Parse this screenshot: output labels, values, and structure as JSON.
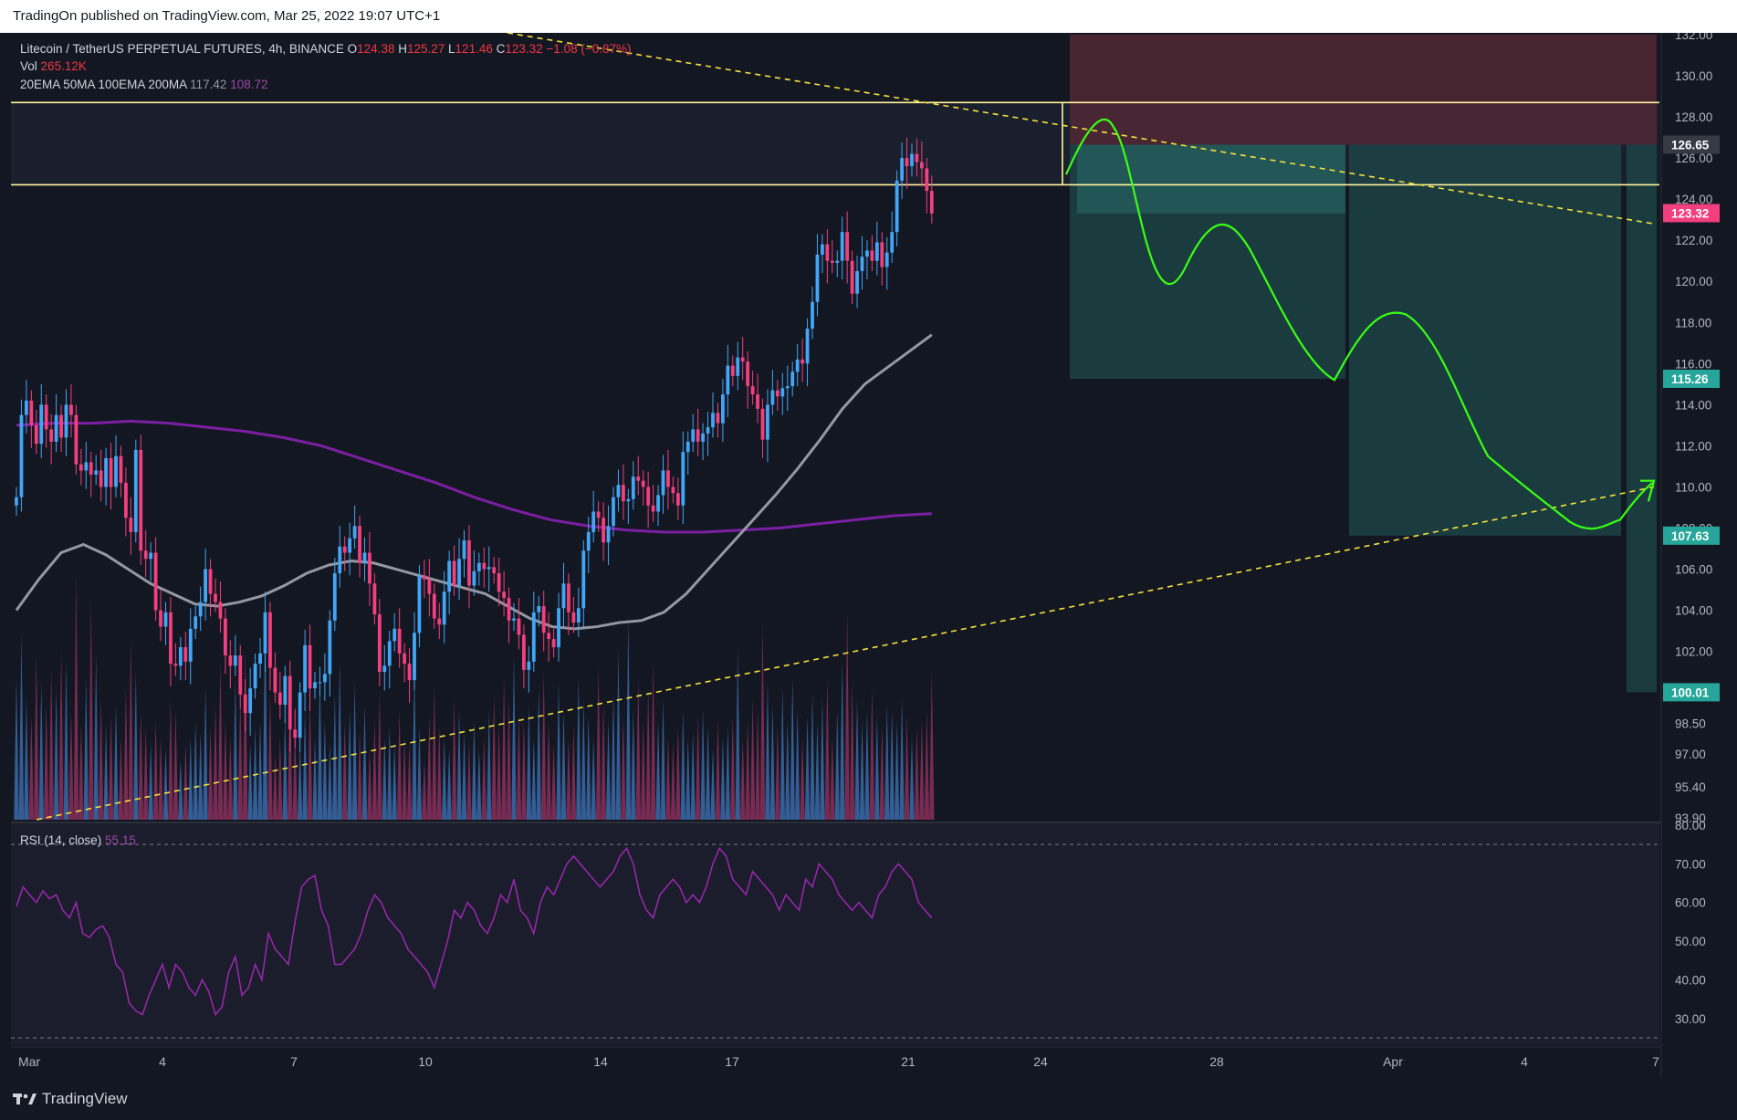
{
  "header": {
    "publisher_line": "TradingOn published on TradingView.com, Mar 25, 2022 19:07 UTC+1"
  },
  "footer": {
    "brand": "TradingView"
  },
  "legend": {
    "symbol": "Litecoin / TetherUS PERPETUAL FUTURES, 4h, BINANCE",
    "o_label": "O",
    "o": "124.38",
    "h_label": "H",
    "h": "125.27",
    "l_label": "L",
    "l": "121.46",
    "c_label": "C",
    "c": "123.32",
    "change": "−1.08 (−0.87%)",
    "vol_label": "Vol",
    "vol": "265.12K",
    "ma_label": "20EMA 50MA 100EMA 200MA",
    "ma1": "117.42",
    "ma2": "108.72",
    "rsi_label": "RSI (14, close)",
    "rsi": "55.15"
  },
  "colors": {
    "up": "#42a5f5",
    "down": "#f23f7e",
    "bg": "#131722",
    "ma100": "#9598a1",
    "ma200": "#7b1fa2",
    "projection": "#39ff14",
    "trend": "#f5e33c",
    "levels": "#fff59d",
    "rsi": "#9c27b0"
  },
  "chart_data": {
    "type": "candlestick",
    "timeframe": "4h",
    "start": "2022-03-01",
    "x_ticks": [
      "Mar",
      "4",
      "7",
      "10",
      "14",
      "17",
      "21",
      "24",
      "28",
      "Apr",
      "4",
      "7"
    ],
    "y_ticks": [
      "132.00",
      "130.00",
      "128.00",
      "126.00",
      "124.00",
      "122.00",
      "120.00",
      "118.00",
      "116.00",
      "114.00",
      "112.00",
      "110.00",
      "108.00",
      "106.00",
      "104.00",
      "102.00",
      "100.00",
      "98.50",
      "97.00",
      "95.40",
      "93.90"
    ],
    "price_badges": [
      {
        "label": "126.65",
        "value": 126.65,
        "color": "#363a45"
      },
      {
        "label": "123.32",
        "value": 123.32,
        "color": "#f23f7e"
      },
      {
        "label": "115.26",
        "value": 115.26,
        "color": "#26a69a"
      },
      {
        "label": "107.63",
        "value": 107.63,
        "color": "#26a69a"
      },
      {
        "label": "100.01",
        "value": 100.01,
        "color": "#26a69a"
      }
    ],
    "ylim": [
      93.9,
      132.0
    ],
    "xlim_candles": [
      0,
      225
    ],
    "horizontal_levels": [
      128.7,
      124.7
    ],
    "rsi_ticks": [
      "80.00",
      "70.00",
      "60.00",
      "50.00",
      "40.00",
      "30.00"
    ],
    "rsi_range": [
      25,
      80
    ],
    "rsi_bands": [
      75,
      25
    ],
    "closes": [
      109.5,
      113.5,
      114.2,
      113.0,
      112.1,
      114.0,
      112.8,
      112.2,
      113.5,
      112.4,
      114.0,
      113.5,
      111.1,
      110.8,
      111.2,
      110.6,
      110.8,
      110.0,
      111.4,
      110.0,
      111.5,
      110.2,
      108.5,
      107.8,
      111.8,
      106.9,
      106.5,
      106.8,
      104.0,
      103.2,
      103.9,
      101.4,
      101.3,
      102.2,
      101.5,
      103.1,
      103.7,
      104.4,
      106.0,
      104.8,
      104.4,
      103.6,
      101.8,
      101.3,
      101.8,
      99.9,
      99.0,
      100.2,
      101.4,
      101.9,
      103.9,
      101.2,
      100.0,
      99.4,
      100.8,
      98.2,
      97.8,
      100.0,
      102.3,
      100.2,
      100.5,
      100.5,
      100.9,
      103.5,
      105.8,
      107.1,
      106.8,
      107.5,
      108.1,
      106.3,
      106.8,
      105.3,
      103.8,
      101.0,
      101.3,
      102.5,
      103.1,
      101.9,
      101.4,
      100.6,
      102.9,
      105.7,
      105.5,
      104.8,
      103.6,
      103.3,
      104.9,
      106.4,
      105.2,
      106.5,
      107.4,
      105.2,
      105.9,
      106.3,
      106.0,
      106.1,
      105.8,
      104.9,
      104.6,
      103.5,
      103.6,
      102.8,
      101.1,
      101.5,
      103.9,
      104.2,
      102.9,
      102.6,
      102.2,
      104.1,
      105.3,
      103.9,
      103.4,
      104.1,
      106.9,
      107.8,
      108.8,
      108.5,
      107.3,
      108.1,
      109.5,
      110.1,
      109.3,
      109.4,
      110.5,
      110.3,
      110.0,
      109.1,
      108.8,
      109.6,
      110.8,
      110.0,
      109.7,
      109.1,
      111.7,
      112.2,
      112.8,
      112.2,
      112.6,
      112.9,
      113.6,
      113.1,
      114.5,
      115.9,
      115.4,
      116.3,
      116.1,
      114.9,
      114.5,
      113.8,
      112.3,
      114.0,
      114.7,
      114.4,
      114.8,
      114.9,
      115.6,
      116.2,
      116.0,
      117.7,
      119.0,
      121.3,
      121.8,
      121.0,
      120.9,
      121.0,
      122.4,
      121.0,
      119.4,
      120.5,
      121.2,
      121.5,
      121.0,
      121.9,
      120.7,
      121.4,
      122.4,
      124.9,
      126.0,
      125.6,
      126.2,
      125.8,
      125.5,
      124.4,
      123.3
    ],
    "ma100": [
      104.0,
      105.5,
      106.8,
      107.2,
      106.7,
      106.0,
      105.3,
      104.8,
      104.3,
      104.2,
      104.4,
      104.7,
      105.2,
      105.8,
      106.2,
      106.4,
      106.3,
      106.0,
      105.7,
      105.4,
      105.1,
      104.8,
      104.2,
      103.6,
      103.2,
      103.1,
      103.2,
      103.4,
      103.5,
      103.9,
      104.8,
      106.0,
      107.2,
      108.4,
      109.6,
      110.9,
      112.3,
      113.8,
      115.0,
      115.8,
      116.6,
      117.4
    ],
    "ma200": [
      113.0,
      113.1,
      113.1,
      113.2,
      113.1,
      112.9,
      112.7,
      112.4,
      112.0,
      111.4,
      110.8,
      110.2,
      109.5,
      108.9,
      108.4,
      108.1,
      107.9,
      107.8,
      107.8,
      107.9,
      108.0,
      108.2,
      108.4,
      108.6,
      108.7
    ],
    "volume": [
      52,
      68,
      44,
      38,
      60,
      50,
      42,
      55,
      48,
      62,
      58,
      40,
      90,
      35,
      52,
      80,
      60,
      44,
      34,
      38,
      42,
      30,
      48,
      66,
      54,
      40,
      34,
      28,
      36,
      30,
      26,
      44,
      40,
      22,
      28,
      30,
      36,
      32,
      48,
      34,
      42,
      58,
      36,
      30,
      52,
      46,
      62,
      28,
      34,
      36,
      78,
      46,
      24,
      30,
      38,
      48,
      34,
      28,
      40,
      44,
      30,
      54,
      36,
      28,
      46,
      58,
      36,
      40,
      50,
      32,
      42,
      26,
      36,
      46,
      30,
      34,
      28,
      40,
      30,
      28,
      56,
      34,
      22,
      38,
      48,
      34,
      30,
      26,
      44,
      40,
      32,
      28,
      36,
      26,
      30,
      40,
      46,
      34,
      52,
      44,
      60,
      38,
      36,
      42,
      30,
      48,
      54,
      36,
      28,
      50,
      40,
      30,
      34,
      52,
      44,
      38,
      30,
      56,
      42,
      36,
      46,
      62,
      38,
      74,
      40,
      52,
      36,
      48,
      58,
      36,
      44,
      30,
      28,
      34,
      40,
      30,
      32,
      38,
      40,
      34,
      26,
      36,
      30,
      34,
      38,
      62,
      30,
      36,
      44,
      40,
      72,
      50,
      42,
      34,
      48,
      36,
      52,
      40,
      30,
      38,
      46,
      36,
      44,
      52,
      30,
      40,
      58,
      76,
      50,
      44,
      36,
      40,
      48,
      38,
      34,
      42,
      40,
      36,
      44,
      38,
      30,
      34,
      36,
      40,
      54,
      48,
      36,
      30,
      44,
      48,
      38,
      32,
      40,
      60
    ],
    "rsi": [
      59,
      64,
      62,
      60,
      63,
      61,
      62,
      58,
      56,
      60,
      52,
      51,
      53,
      54,
      51,
      44,
      42,
      34,
      32,
      31,
      36,
      40,
      44,
      38,
      44,
      42,
      38,
      36,
      40,
      37,
      31,
      33,
      42,
      46,
      36,
      38,
      44,
      40,
      52,
      48,
      46,
      44,
      55,
      64,
      66,
      67,
      58,
      54,
      44,
      44,
      46,
      48,
      52,
      58,
      62,
      60,
      56,
      54,
      52,
      48,
      46,
      44,
      42,
      38,
      44,
      50,
      58,
      56,
      60,
      58,
      54,
      52,
      56,
      62,
      60,
      66,
      58,
      56,
      52,
      60,
      64,
      62,
      66,
      70,
      72,
      70,
      68,
      66,
      64,
      66,
      68,
      72,
      74,
      70,
      62,
      58,
      56,
      62,
      64,
      66,
      64,
      60,
      62,
      60,
      64,
      70,
      74,
      72,
      66,
      64,
      62,
      68,
      66,
      64,
      62,
      58,
      62,
      60,
      58,
      66,
      64,
      70,
      68,
      66,
      62,
      60,
      58,
      60,
      58,
      56,
      62,
      64,
      68,
      70,
      68,
      66,
      60,
      58,
      56
    ],
    "proj_short": {
      "entry_top": 126.65,
      "entry_bottom": 123.3,
      "stop_top": 132.0,
      "target1": 115.26,
      "target2": 107.63,
      "target3": 100.01
    }
  }
}
